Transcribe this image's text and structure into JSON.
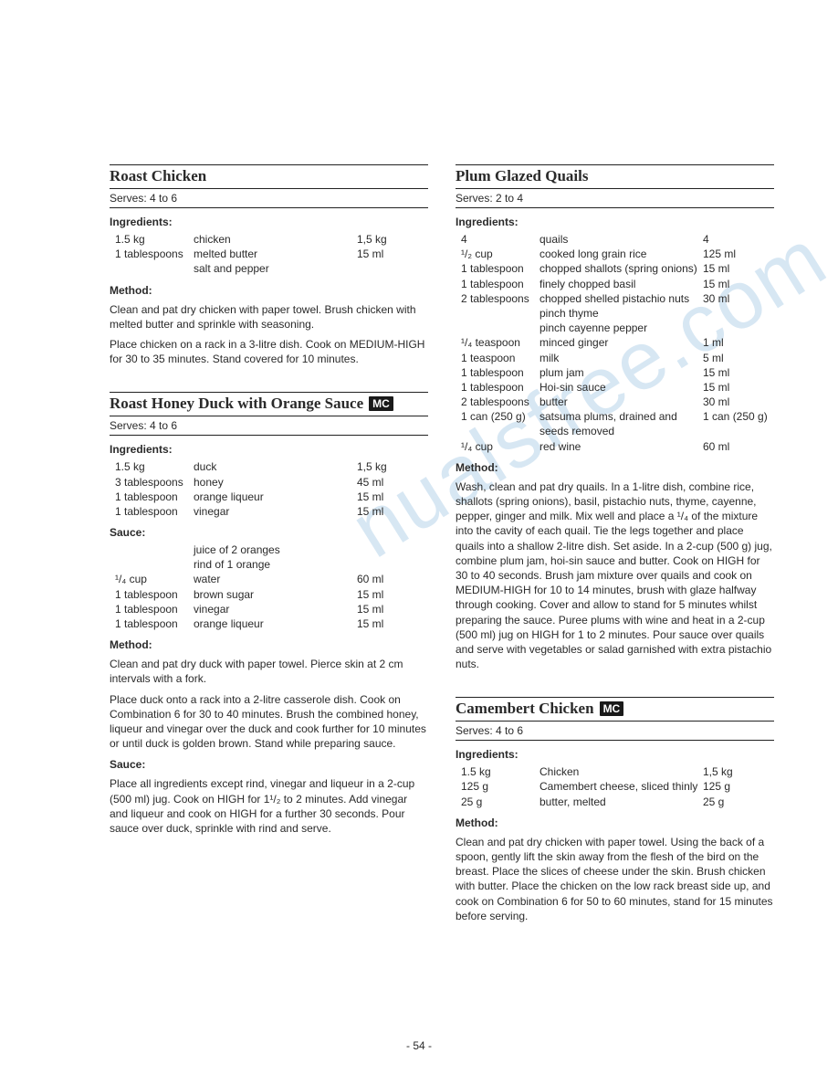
{
  "page_number": "- 54 -",
  "watermark": "nualsfree.com",
  "mc_badge": "MC",
  "recipes": {
    "roast_chicken": {
      "title": "Roast Chicken",
      "serves": "Serves: 4 to 6",
      "ingredients_label": "Ingredients:",
      "ingredients": [
        {
          "qty": "1.5 kg",
          "name": "chicken",
          "metric": "1,5 kg"
        },
        {
          "qty": "1 tablespoons",
          "name": "melted butter",
          "metric": "15 ml"
        },
        {
          "qty": "",
          "name": "salt and pepper",
          "metric": ""
        }
      ],
      "method_label": "Method:",
      "method": [
        "Clean and pat dry chicken with paper towel. Brush chicken with melted butter and sprinkle with seasoning.",
        "Place chicken on a rack in a 3-litre dish. Cook on MEDIUM-HIGH for 30 to 35 minutes. Stand covered for 10 minutes."
      ]
    },
    "honey_duck": {
      "title": "Roast Honey Duck with Orange Sauce",
      "has_mc": true,
      "serves": "Serves: 4 to 6",
      "ingredients_label": "Ingredients:",
      "ingredients": [
        {
          "qty": "1.5 kg",
          "name": "duck",
          "metric": "1,5 kg"
        },
        {
          "qty": "3 tablespoons",
          "name": "honey",
          "metric": "45 ml"
        },
        {
          "qty": "1 tablespoon",
          "name": "orange liqueur",
          "metric": "15 ml"
        },
        {
          "qty": "1 tablespoon",
          "name": "vinegar",
          "metric": "15 ml"
        }
      ],
      "sauce_label": "Sauce:",
      "sauce": [
        {
          "qty": "",
          "name": "juice of 2 oranges",
          "metric": ""
        },
        {
          "qty": "",
          "name": "rind of 1 orange",
          "metric": ""
        },
        {
          "qty": "¹/₄ cup",
          "name": "water",
          "metric": "60 ml"
        },
        {
          "qty": "1 tablespoon",
          "name": "brown sugar",
          "metric": "15 ml"
        },
        {
          "qty": "1 tablespoon",
          "name": "vinegar",
          "metric": "15 ml"
        },
        {
          "qty": "1 tablespoon",
          "name": "orange liqueur",
          "metric": "15 ml"
        }
      ],
      "method_label": "Method:",
      "method": [
        "Clean and pat dry duck with paper towel. Pierce skin at 2 cm intervals with a fork.",
        "Place duck onto a rack into a 2-litre casserole dish. Cook on Combination 6 for 30 to 40 minutes. Brush the combined honey, liqueur and vinegar over the duck and cook further for 10 minutes or until duck is golden brown. Stand while preparing sauce."
      ],
      "sauce_method_label": "Sauce:",
      "sauce_method": [
        "Place all ingredients except rind, vinegar and liqueur in a 2-cup (500 ml) jug. Cook on HIGH for 1¹/₂ to 2 minutes. Add vinegar and liqueur and cook on HIGH for a further 30 seconds. Pour sauce over duck, sprinkle with rind and serve."
      ]
    },
    "plum_quails": {
      "title": "Plum Glazed Quails",
      "serves": "Serves: 2 to 4",
      "ingredients_label": "Ingredients:",
      "ingredients": [
        {
          "qty": "4",
          "name": "quails",
          "metric": "4"
        },
        {
          "qty": "¹/₂ cup",
          "name": "cooked long grain rice",
          "metric": "125 ml"
        },
        {
          "qty": "1 tablespoon",
          "name": "chopped shallots (spring onions)",
          "metric": "15 ml"
        },
        {
          "qty": "1 tablespoon",
          "name": "finely chopped basil",
          "metric": "15 ml"
        },
        {
          "qty": "2 tablespoons",
          "name": "chopped shelled pistachio nuts",
          "metric": "30 ml"
        },
        {
          "qty": "",
          "name": "pinch thyme",
          "metric": ""
        },
        {
          "qty": "",
          "name": "pinch cayenne pepper",
          "metric": ""
        },
        {
          "qty": "¹/₄ teaspoon",
          "name": "minced ginger",
          "metric": "1 ml"
        },
        {
          "qty": "1 teaspoon",
          "name": "milk",
          "metric": "5 ml"
        },
        {
          "qty": "1 tablespoon",
          "name": "plum jam",
          "metric": "15 ml"
        },
        {
          "qty": "1 tablespoon",
          "name": "Hoi-sin sauce",
          "metric": "15 ml"
        },
        {
          "qty": "2 tablespoons",
          "name": "butter",
          "metric": "30 ml"
        },
        {
          "qty": "1 can (250 g)",
          "name": "satsuma plums, drained and seeds removed",
          "metric": "1 can (250 g)"
        },
        {
          "qty": "¹/₄ cup",
          "name": "red wine",
          "metric": "60 ml"
        }
      ],
      "method_label": "Method:",
      "method": [
        "Wash, clean and pat dry quails. In a 1-litre dish, combine rice, shallots (spring onions), basil, pistachio nuts, thyme, cayenne, pepper, ginger and milk. Mix well and place a ¹/₄ of the mixture into the cavity of each quail. Tie the legs together and place quails into a shallow 2-litre dish. Set aside. In a 2-cup (500 g) jug, combine plum jam, hoi-sin sauce and butter. Cook on HIGH for 30 to 40 seconds. Brush jam mixture over quails and cook on MEDIUM-HIGH for 10 to 14 minutes, brush with glaze halfway through cooking. Cover and allow to stand for 5 minutes whilst preparing the sauce. Puree plums with wine and heat in a 2-cup (500 ml) jug on HIGH for 1 to 2 minutes. Pour sauce over quails and serve with vegetables or salad garnished with extra pistachio nuts."
      ]
    },
    "camembert_chicken": {
      "title": "Camembert Chicken",
      "has_mc": true,
      "serves": "Serves: 4 to 6",
      "ingredients_label": "Ingredients:",
      "ingredients": [
        {
          "qty": "1.5 kg",
          "name": "Chicken",
          "metric": "1,5 kg"
        },
        {
          "qty": "125 g",
          "name": "Camembert cheese, sliced thinly",
          "metric": "125 g"
        },
        {
          "qty": "25 g",
          "name": "butter, melted",
          "metric": "25 g"
        }
      ],
      "method_label": "Method:",
      "method": [
        "Clean and pat dry chicken with paper towel. Using the back of a spoon, gently lift the skin away from the flesh of the bird on the breast. Place the slices of cheese under the skin. Brush chicken with butter. Place the chicken on the low rack breast side up, and cook on Combination 6 for 50 to 60 minutes, stand for 15 minutes before serving."
      ]
    }
  }
}
